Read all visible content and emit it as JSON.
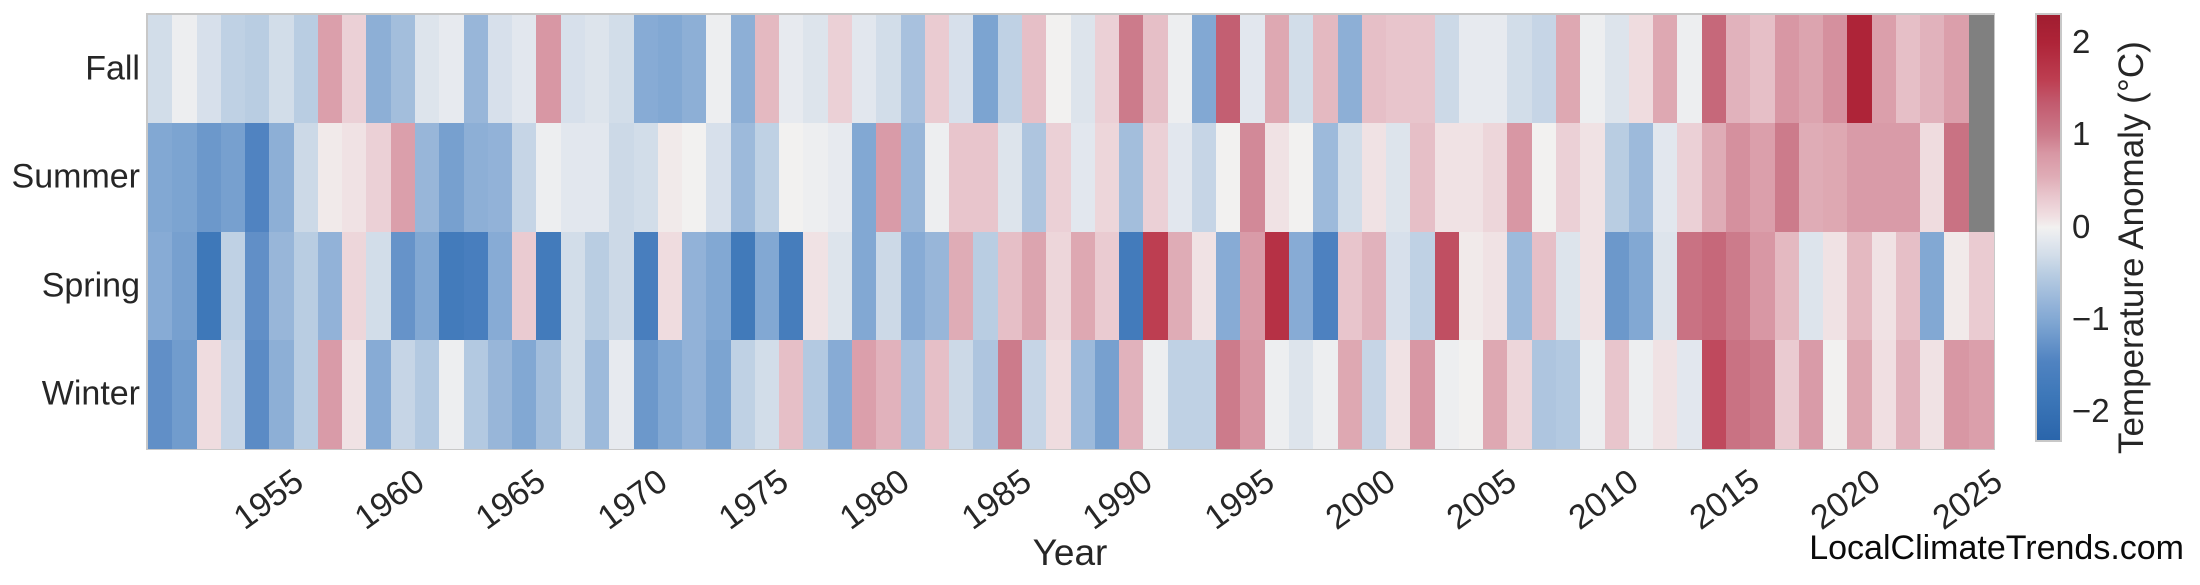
{
  "watermark": "LocalClimateTrends.com",
  "chart_data": {
    "type": "heatmap",
    "title": "",
    "xlabel": "Year",
    "ylabel": "",
    "colorbar_label": "Temperature Anomaly (°C)",
    "rows_top_to_bottom": [
      "Fall",
      "Summer",
      "Spring",
      "Winter"
    ],
    "years": [
      1950,
      1951,
      1952,
      1953,
      1954,
      1955,
      1956,
      1957,
      1958,
      1959,
      1960,
      1961,
      1962,
      1963,
      1964,
      1965,
      1966,
      1967,
      1968,
      1969,
      1970,
      1971,
      1972,
      1973,
      1974,
      1975,
      1976,
      1977,
      1978,
      1979,
      1980,
      1981,
      1982,
      1983,
      1984,
      1985,
      1986,
      1987,
      1988,
      1989,
      1990,
      1991,
      1992,
      1993,
      1994,
      1995,
      1996,
      1997,
      1998,
      1999,
      2000,
      2001,
      2002,
      2003,
      2004,
      2005,
      2006,
      2007,
      2008,
      2009,
      2010,
      2011,
      2012,
      2013,
      2014,
      2015,
      2016,
      2017,
      2018,
      2019,
      2020,
      2021,
      2022,
      2023,
      2024,
      2025
    ],
    "x_tick_labels": [
      "1955",
      "1960",
      "1965",
      "1970",
      "1975",
      "1980",
      "1985",
      "1990",
      "1995",
      "2000",
      "2005",
      "2010",
      "2015",
      "2020",
      "2025"
    ],
    "colorbar_tick_labels": [
      "2",
      "1",
      "0",
      "−1",
      "−2"
    ],
    "colorbar_tick_values": [
      2,
      1,
      0,
      -1,
      -2
    ],
    "vmin": -2.3,
    "vmax": 2.3,
    "grid": false,
    "missing_color": "#808080",
    "colormap_stops": [
      {
        "v": -2.3,
        "c": "#2a65ab"
      },
      {
        "v": -1.8,
        "c": "#3e78b9"
      },
      {
        "v": -1.45,
        "c": "#5083c1"
      },
      {
        "v": -1.0,
        "c": "#82a8d3"
      },
      {
        "v": -0.85,
        "c": "#92b2d8"
      },
      {
        "v": -0.5,
        "c": "#b9cde2"
      },
      {
        "v": -0.3,
        "c": "#d2dde9"
      },
      {
        "v": -0.12,
        "c": "#e5e9ef"
      },
      {
        "v": 0.0,
        "c": "#f2f1f0"
      },
      {
        "v": 0.12,
        "c": "#f0dfe2"
      },
      {
        "v": 0.35,
        "c": "#e8c5cc"
      },
      {
        "v": 0.55,
        "c": "#dfacb6"
      },
      {
        "v": 0.8,
        "c": "#d897a4"
      },
      {
        "v": 1.0,
        "c": "#cc7b8b"
      },
      {
        "v": 1.35,
        "c": "#c25a6e"
      },
      {
        "v": 1.6,
        "c": "#bd3e51"
      },
      {
        "v": 2.0,
        "c": "#ae2438"
      },
      {
        "v": 2.3,
        "c": "#a01d30"
      }
    ],
    "series": [
      {
        "name": "Fall",
        "values": [
          -0.3,
          -0.05,
          -0.25,
          -0.45,
          -0.5,
          -0.3,
          -0.5,
          0.7,
          0.25,
          -0.9,
          -0.7,
          -0.2,
          -0.1,
          -0.8,
          -0.25,
          -0.15,
          0.8,
          -0.25,
          -0.2,
          -0.3,
          -0.95,
          -1.0,
          -0.9,
          -0.05,
          -0.9,
          0.45,
          -0.1,
          -0.2,
          0.25,
          -0.15,
          -0.3,
          -0.65,
          0.3,
          -0.25,
          -1.05,
          -0.45,
          0.4,
          0.0,
          -0.2,
          0.25,
          1.0,
          0.4,
          -0.05,
          -1.0,
          1.3,
          -0.15,
          0.6,
          -0.3,
          0.45,
          -0.9,
          0.4,
          0.35,
          0.35,
          -0.35,
          -0.1,
          -0.1,
          -0.3,
          -0.4,
          0.6,
          -0.05,
          -0.2,
          0.15,
          0.6,
          -0.05,
          1.2,
          0.5,
          0.4,
          0.8,
          0.65,
          0.85,
          2.0,
          0.7,
          0.4,
          0.5,
          0.7,
          null
        ]
      },
      {
        "name": "Summer",
        "values": [
          -1.0,
          -1.05,
          -1.2,
          -1.1,
          -1.45,
          -0.9,
          -0.35,
          0.05,
          0.1,
          0.25,
          0.7,
          -0.8,
          -1.1,
          -0.9,
          -0.85,
          -0.4,
          -0.05,
          -0.15,
          -0.15,
          -0.35,
          -0.3,
          0.05,
          0.0,
          -0.25,
          -0.75,
          -0.45,
          0.0,
          -0.05,
          -0.1,
          -1.0,
          0.75,
          -0.8,
          -0.05,
          0.35,
          0.35,
          -0.2,
          -0.6,
          0.25,
          -0.15,
          0.2,
          -0.7,
          0.25,
          -0.15,
          -0.4,
          0.0,
          0.9,
          0.1,
          0.0,
          -0.75,
          -0.3,
          0.1,
          -0.2,
          0.4,
          0.1,
          0.1,
          0.2,
          0.8,
          0.0,
          0.25,
          0.1,
          -0.5,
          -0.75,
          -0.15,
          0.25,
          0.55,
          0.85,
          0.7,
          1.0,
          0.55,
          0.6,
          0.75,
          0.75,
          0.75,
          0.15,
          1.1,
          null
        ]
      },
      {
        "name": "Spring",
        "values": [
          -0.95,
          -1.1,
          -1.8,
          -0.45,
          -1.3,
          -0.8,
          -0.5,
          -0.85,
          0.2,
          -0.3,
          -1.25,
          -1.0,
          -1.7,
          -1.6,
          -0.95,
          0.3,
          -1.7,
          -0.3,
          -0.5,
          -0.35,
          -1.6,
          0.15,
          -0.85,
          -1.0,
          -1.75,
          -1.0,
          -1.65,
          0.1,
          -0.2,
          -1.0,
          -0.35,
          -0.95,
          -0.8,
          0.55,
          -0.5,
          0.4,
          0.65,
          0.2,
          0.6,
          0.3,
          -1.7,
          1.6,
          0.55,
          0.1,
          -0.95,
          0.75,
          1.8,
          -0.95,
          -1.5,
          0.35,
          0.5,
          -0.25,
          -0.45,
          1.45,
          0.05,
          0.1,
          -0.75,
          0.4,
          -0.2,
          0.1,
          -1.2,
          -1.0,
          -0.2,
          1.1,
          1.2,
          1.0,
          0.8,
          0.45,
          -0.2,
          0.1,
          0.45,
          0.1,
          0.4,
          -1.0,
          0.05,
          0.3
        ]
      },
      {
        "name": "Winter",
        "values": [
          -1.3,
          -1.15,
          0.15,
          -0.4,
          -1.35,
          -0.9,
          -0.5,
          0.75,
          0.1,
          -0.95,
          -0.4,
          -0.55,
          -0.05,
          -0.55,
          -0.8,
          -1.0,
          -0.7,
          -0.3,
          -0.75,
          -0.1,
          -1.2,
          -1.0,
          -0.85,
          -1.05,
          -0.45,
          -0.3,
          0.4,
          -0.55,
          -0.95,
          0.7,
          0.5,
          -0.65,
          0.4,
          -0.35,
          -0.6,
          1.0,
          -0.4,
          0.15,
          -0.75,
          -1.1,
          0.5,
          -0.05,
          -0.45,
          -0.45,
          1.0,
          0.8,
          -0.05,
          -0.2,
          -0.05,
          0.6,
          -0.4,
          0.1,
          0.8,
          -0.05,
          0.0,
          0.6,
          0.2,
          -0.6,
          -0.55,
          -0.05,
          0.35,
          -0.05,
          0.1,
          -0.15,
          1.5,
          1.1,
          1.0,
          0.3,
          0.75,
          0.0,
          0.6,
          0.12,
          0.5,
          0.1,
          0.8,
          0.7
        ]
      }
    ]
  }
}
